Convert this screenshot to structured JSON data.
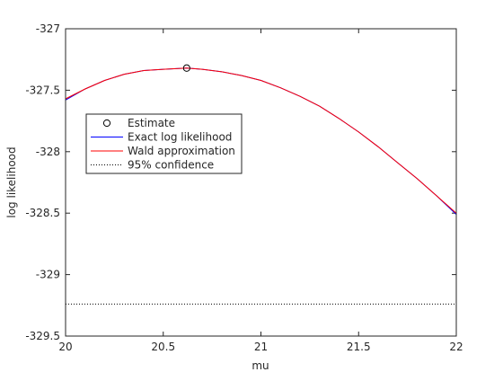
{
  "chart_data": {
    "type": "line",
    "xlabel": "mu",
    "ylabel": "log likelihood",
    "xlim": [
      20,
      22
    ],
    "ylim": [
      -329.5,
      -327
    ],
    "xticks": [
      20,
      20.5,
      21,
      21.5,
      22
    ],
    "xtick_labels": [
      "20",
      "20.5",
      "21",
      "21.5",
      "22"
    ],
    "yticks": [
      -329.5,
      -329,
      -328.5,
      -328,
      -327.5,
      -327
    ],
    "ytick_labels": [
      "-329.5",
      "-329",
      "-328.5",
      "-328",
      "-327.5",
      "-327"
    ],
    "grid": false,
    "legend_placement": "left",
    "estimate": {
      "x": 20.62,
      "y": -327.32
    },
    "series": [
      {
        "name": "Estimate",
        "style": "marker",
        "color": "#000000",
        "x": [
          20.62
        ],
        "y": [
          -327.32
        ]
      },
      {
        "name": "Exact log likelihood",
        "style": "line",
        "color": "#0000ff",
        "x": [
          20.0,
          20.1,
          20.2,
          20.3,
          20.4,
          20.5,
          20.62,
          20.7,
          20.8,
          20.9,
          21.0,
          21.1,
          21.2,
          21.3,
          21.4,
          21.5,
          21.6,
          21.7,
          21.8,
          21.9,
          22.0
        ],
        "y": [
          -327.58,
          -327.49,
          -327.42,
          -327.37,
          -327.34,
          -327.33,
          -327.32,
          -327.33,
          -327.35,
          -327.38,
          -327.42,
          -327.48,
          -327.55,
          -327.63,
          -327.73,
          -327.84,
          -327.96,
          -328.09,
          -328.22,
          -328.36,
          -328.51
        ]
      },
      {
        "name": "Wald approximation",
        "style": "line",
        "color": "#ff0000",
        "x": [
          20.0,
          20.1,
          20.2,
          20.3,
          20.4,
          20.5,
          20.62,
          20.7,
          20.8,
          20.9,
          21.0,
          21.1,
          21.2,
          21.3,
          21.4,
          21.5,
          21.6,
          21.7,
          21.8,
          21.9,
          22.0
        ],
        "y": [
          -327.57,
          -327.49,
          -327.42,
          -327.37,
          -327.34,
          -327.33,
          -327.32,
          -327.33,
          -327.35,
          -327.38,
          -327.42,
          -327.48,
          -327.55,
          -327.63,
          -327.73,
          -327.84,
          -327.96,
          -328.09,
          -328.22,
          -328.36,
          -328.5
        ]
      },
      {
        "name": "95% confidence",
        "style": "dotted",
        "color": "#000000",
        "x": [
          20,
          22
        ],
        "y": [
          -329.24,
          -329.24
        ]
      }
    ]
  }
}
